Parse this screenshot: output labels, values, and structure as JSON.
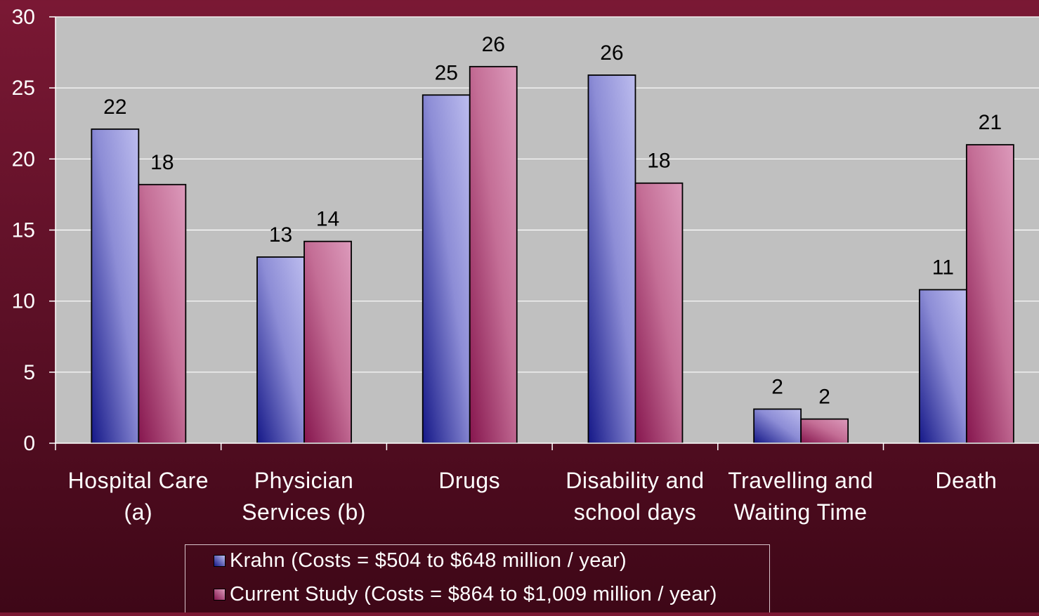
{
  "colors": {
    "background": "#6a1430",
    "plot_area": "#c0c0c0",
    "krahn_light": "#b6b6ec",
    "krahn_dark": "#151888",
    "current_light": "#d992b2",
    "current_dark": "#86164e",
    "text": "#ffffff",
    "data_label": "#000000"
  },
  "chart_data": {
    "type": "bar",
    "categories": [
      "Hospital Care (a)",
      "Physician Services (b)",
      "Drugs",
      "Disability and school days",
      "Travelling and Waiting Time",
      "Death"
    ],
    "category_label_lines": [
      [
        "Hospital Care",
        "(a)"
      ],
      [
        "Physician",
        "Services (b)"
      ],
      [
        "Drugs"
      ],
      [
        "Disability and",
        "school days"
      ],
      [
        "Travelling and",
        "Waiting Time"
      ],
      [
        "Death"
      ]
    ],
    "series": [
      {
        "name": "Krahn (Costs = $504 to $648 million / year)",
        "values": [
          22.1,
          13.1,
          24.5,
          25.9,
          2.4,
          10.8
        ],
        "labels": [
          "22",
          "13",
          "25",
          "26",
          "2",
          "11"
        ],
        "color": "#a3a3e6"
      },
      {
        "name": "Current Study (Costs = $864 to $1,009 million / year)",
        "values": [
          18.2,
          14.2,
          26.5,
          18.3,
          1.7,
          21.0
        ],
        "labels": [
          "18",
          "14",
          "26",
          "18",
          "2",
          "21"
        ],
        "color": "#cc7aa0"
      }
    ],
    "ylim": [
      0,
      30
    ],
    "yticks": [
      0,
      5,
      10,
      15,
      20,
      25,
      30
    ],
    "grid": true,
    "legend": "bottom",
    "title": "",
    "xlabel": "",
    "ylabel": ""
  }
}
